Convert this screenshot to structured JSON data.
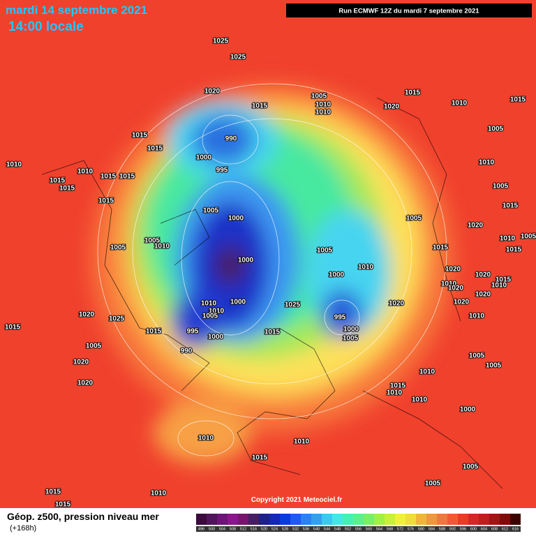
{
  "header": {
    "title": "mardi 14 septembre 2021",
    "time": "14:00 locale",
    "run": "Run ECMWF 12Z du mardi 7 septembre 2021"
  },
  "isobar_labels": [
    "1025",
    "1025",
    "1020",
    "1015",
    "1005",
    "1010",
    "1010",
    "1015",
    "1020",
    "1010",
    "1015",
    "1005",
    "990",
    "1000",
    "995",
    "1015",
    "1015",
    "1010",
    "1010",
    "1015",
    "1015",
    "1015",
    "1015",
    "1015",
    "1010",
    "1005",
    "1015",
    "1005",
    "1020",
    "1010",
    "1005",
    "1015",
    "1015",
    "1005",
    "1000",
    "1005",
    "1010",
    "1005",
    "1000",
    "1005",
    "1010",
    "1000",
    "1020",
    "1010",
    "1020",
    "1020",
    "1015",
    "1010",
    "1020",
    "1020",
    "1010",
    "1010",
    "1000",
    "1025",
    "1020",
    "1005",
    "995",
    "990",
    "1000",
    "995",
    "1000",
    "1005",
    "1015",
    "1015",
    "1025",
    "1020",
    "1015",
    "1005",
    "1020",
    "1020",
    "1010",
    "1005",
    "1005",
    "1010",
    "1015",
    "1010",
    "1010",
    "1000",
    "1010",
    "1010",
    "1015",
    "1005",
    "1015",
    "1015",
    "1010",
    "1005"
  ],
  "copyright": "Copyright 2021 Meteociel.fr",
  "footer": {
    "product": "Géop. z500, pression niveau mer",
    "lead": "(+168h)"
  },
  "colorbar": {
    "labels": [
      "496",
      "500",
      "504",
      "508",
      "512",
      "516",
      "520",
      "524",
      "528",
      "532",
      "536",
      "540",
      "544",
      "548",
      "552",
      "556",
      "560",
      "564",
      "568",
      "572",
      "576",
      "580",
      "584",
      "588",
      "592",
      "596",
      "600",
      "604",
      "608",
      "612",
      "616"
    ]
  }
}
